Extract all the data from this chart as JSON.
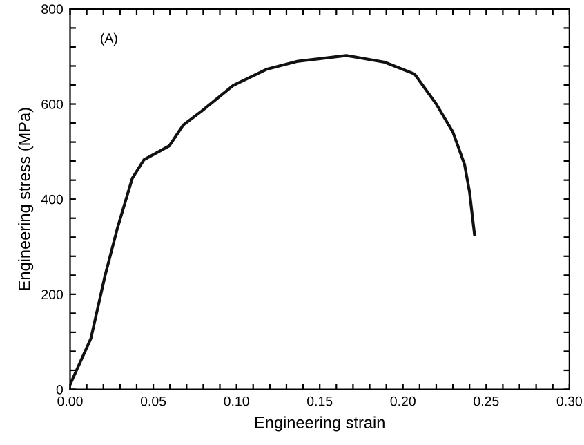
{
  "chart_data": {
    "type": "line",
    "xlabel": "Engineering strain",
    "ylabel": "Engineering stress (MPa)",
    "annotations": [
      "(A)"
    ],
    "xlim": [
      0,
      0.3
    ],
    "ylim": [
      0,
      800
    ],
    "xticks": [
      {
        "value": 0,
        "label": "0.00"
      },
      {
        "value": 0.01,
        "label": null
      },
      {
        "value": 0.02,
        "label": null
      },
      {
        "value": 0.03,
        "label": null
      },
      {
        "value": 0.04,
        "label": null
      },
      {
        "value": 0.05,
        "label": "0.05"
      },
      {
        "value": 0.06,
        "label": null
      },
      {
        "value": 0.07,
        "label": null
      },
      {
        "value": 0.08,
        "label": null
      },
      {
        "value": 0.09,
        "label": null
      },
      {
        "value": 0.1,
        "label": "0.10"
      },
      {
        "value": 0.11,
        "label": null
      },
      {
        "value": 0.12,
        "label": null
      },
      {
        "value": 0.13,
        "label": null
      },
      {
        "value": 0.14,
        "label": null
      },
      {
        "value": 0.15,
        "label": "0.15"
      },
      {
        "value": 0.16,
        "label": null
      },
      {
        "value": 0.17,
        "label": null
      },
      {
        "value": 0.18,
        "label": null
      },
      {
        "value": 0.19,
        "label": null
      },
      {
        "value": 0.2,
        "label": "0.20"
      },
      {
        "value": 0.21,
        "label": null
      },
      {
        "value": 0.22,
        "label": null
      },
      {
        "value": 0.23,
        "label": null
      },
      {
        "value": 0.24,
        "label": null
      },
      {
        "value": 0.25,
        "label": "0.25"
      },
      {
        "value": 0.26,
        "label": null
      },
      {
        "value": 0.27,
        "label": null
      },
      {
        "value": 0.28,
        "label": null
      },
      {
        "value": 0.29,
        "label": null
      },
      {
        "value": 0.3,
        "label": "0.30"
      }
    ],
    "yticks": [
      0,
      {
        "value": 40,
        "label": null
      },
      {
        "value": 80,
        "label": null
      },
      {
        "value": 120,
        "label": null
      },
      {
        "value": 160,
        "label": null
      },
      200,
      {
        "value": 240,
        "label": null
      },
      {
        "value": 280,
        "label": null
      },
      {
        "value": 320,
        "label": null
      },
      {
        "value": 360,
        "label": null
      },
      400,
      {
        "value": 440,
        "label": null
      },
      {
        "value": 480,
        "label": null
      },
      {
        "value": 520,
        "label": null
      },
      {
        "value": 560,
        "label": null
      },
      600,
      {
        "value": 640,
        "label": null
      },
      {
        "value": 680,
        "label": null
      },
      {
        "value": 720,
        "label": null
      },
      {
        "value": 760,
        "label": null
      },
      800
    ],
    "grid": false,
    "legend": false,
    "marker": "none",
    "line_style": "solid",
    "series": [
      {
        "color": "#111111",
        "x": [
          0,
          0.0125,
          0.021,
          0.0286,
          0.0374,
          0.0444,
          0.0596,
          0.068,
          0.079,
          0.098,
          0.118,
          0.137,
          0.166,
          0.189,
          0.207,
          0.22,
          0.23,
          0.237,
          0.24,
          0.243
        ],
        "values": [
          10,
          107,
          239,
          341,
          444,
          483,
          512,
          556,
          585,
          639,
          673,
          690,
          702,
          688,
          663,
          600,
          541,
          473,
          415,
          325
        ]
      }
    ]
  }
}
